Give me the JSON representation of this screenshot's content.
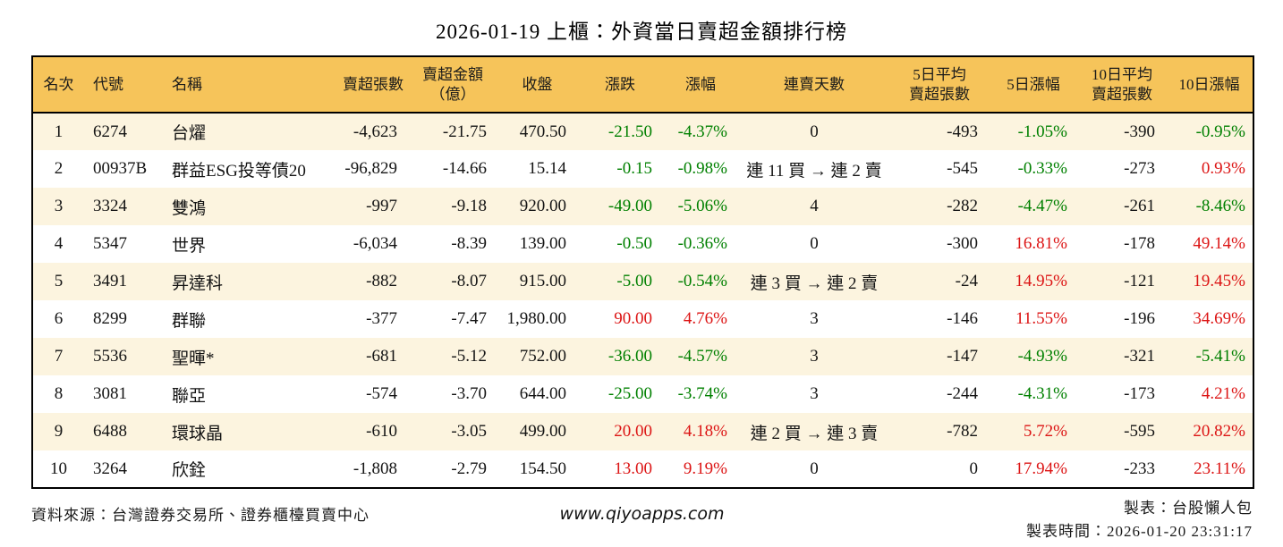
{
  "title": "2026-01-19 上櫃：外資當日賣超金額排行榜",
  "colors": {
    "header_bg": "#F6C45A",
    "row_alt_bg": "#FCF4DF",
    "row_bg": "#FFFFFF",
    "up": "#DC1414",
    "down": "#008000"
  },
  "table": {
    "headers": [
      "名次",
      "代號",
      "名稱",
      "賣超張數",
      "賣超金額\n（億）",
      "收盤",
      "漲跌",
      "漲幅",
      "連賣天數",
      "5日平均\n賣超張數",
      "5日漲幅",
      "10日平均\n賣超張數",
      "10日漲幅"
    ],
    "rows": [
      {
        "rank": "1",
        "code": "6274",
        "name": "台燿",
        "sell_volume": "-4,623",
        "sell_amount": "-21.75",
        "close": "470.50",
        "change": "-21.50",
        "change_pct": "-4.37%",
        "streak": "0",
        "avg5": "-493",
        "pct5": "-1.05%",
        "avg10": "-390",
        "pct10": "-0.95%"
      },
      {
        "rank": "2",
        "code": "00937B",
        "name": "群益ESG投等債20",
        "sell_volume": "-96,829",
        "sell_amount": "-14.66",
        "close": "15.14",
        "change": "-0.15",
        "change_pct": "-0.98%",
        "streak": "連 11 買 → 連 2 賣",
        "avg5": "-545",
        "pct5": "-0.33%",
        "avg10": "-273",
        "pct10": "0.93%"
      },
      {
        "rank": "3",
        "code": "3324",
        "name": "雙鴻",
        "sell_volume": "-997",
        "sell_amount": "-9.18",
        "close": "920.00",
        "change": "-49.00",
        "change_pct": "-5.06%",
        "streak": "4",
        "avg5": "-282",
        "pct5": "-4.47%",
        "avg10": "-261",
        "pct10": "-8.46%"
      },
      {
        "rank": "4",
        "code": "5347",
        "name": "世界",
        "sell_volume": "-6,034",
        "sell_amount": "-8.39",
        "close": "139.00",
        "change": "-0.50",
        "change_pct": "-0.36%",
        "streak": "0",
        "avg5": "-300",
        "pct5": "16.81%",
        "avg10": "-178",
        "pct10": "49.14%"
      },
      {
        "rank": "5",
        "code": "3491",
        "name": "昇達科",
        "sell_volume": "-882",
        "sell_amount": "-8.07",
        "close": "915.00",
        "change": "-5.00",
        "change_pct": "-0.54%",
        "streak": "連 3 買 → 連 2 賣",
        "avg5": "-24",
        "pct5": "14.95%",
        "avg10": "-121",
        "pct10": "19.45%"
      },
      {
        "rank": "6",
        "code": "8299",
        "name": "群聯",
        "sell_volume": "-377",
        "sell_amount": "-7.47",
        "close": "1,980.00",
        "change": "90.00",
        "change_pct": "4.76%",
        "streak": "3",
        "avg5": "-146",
        "pct5": "11.55%",
        "avg10": "-196",
        "pct10": "34.69%"
      },
      {
        "rank": "7",
        "code": "5536",
        "name": "聖暉*",
        "sell_volume": "-681",
        "sell_amount": "-5.12",
        "close": "752.00",
        "change": "-36.00",
        "change_pct": "-4.57%",
        "streak": "3",
        "avg5": "-147",
        "pct5": "-4.93%",
        "avg10": "-321",
        "pct10": "-5.41%"
      },
      {
        "rank": "8",
        "code": "3081",
        "name": "聯亞",
        "sell_volume": "-574",
        "sell_amount": "-3.70",
        "close": "644.00",
        "change": "-25.00",
        "change_pct": "-3.74%",
        "streak": "3",
        "avg5": "-244",
        "pct5": "-4.31%",
        "avg10": "-173",
        "pct10": "4.21%"
      },
      {
        "rank": "9",
        "code": "6488",
        "name": "環球晶",
        "sell_volume": "-610",
        "sell_amount": "-3.05",
        "close": "499.00",
        "change": "20.00",
        "change_pct": "4.18%",
        "streak": "連 2 買 → 連 3 賣",
        "avg5": "-782",
        "pct5": "5.72%",
        "avg10": "-595",
        "pct10": "20.82%"
      },
      {
        "rank": "10",
        "code": "3264",
        "name": "欣銓",
        "sell_volume": "-1,808",
        "sell_amount": "-2.79",
        "close": "154.50",
        "change": "13.00",
        "change_pct": "9.19%",
        "streak": "0",
        "avg5": "0",
        "pct5": "17.94%",
        "avg10": "-233",
        "pct10": "23.11%"
      }
    ]
  },
  "footer": {
    "source": "資料來源：台灣證券交易所、證券櫃檯買賣中心",
    "website": "www.qiyoapps.com",
    "credit": "製表：台股懶人包",
    "timestamp": "製表時間：2026-01-20 23:31:17"
  }
}
